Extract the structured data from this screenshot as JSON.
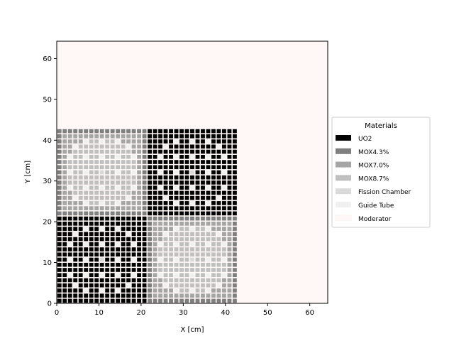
{
  "chart_data": {
    "type": "heatmap",
    "title": "",
    "xlabel": "X [cm]",
    "ylabel": "Y [cm]",
    "xlim": [
      0,
      64.26
    ],
    "ylim": [
      0,
      64.26
    ],
    "xticks": [
      0,
      10,
      20,
      30,
      40,
      50,
      60
    ],
    "yticks": [
      0,
      10,
      20,
      30,
      40,
      50,
      60
    ],
    "grid": false,
    "legend": {
      "title": "Materials",
      "placement": "outside-right",
      "entries": [
        {
          "name": "UO2",
          "color": "#000000"
        },
        {
          "name": "MOX4.3%",
          "color": "#7f7f7f"
        },
        {
          "name": "MOX7.0%",
          "color": "#a5a5a5"
        },
        {
          "name": "MOX8.7%",
          "color": "#bfbfbf"
        },
        {
          "name": "Fission Chamber",
          "color": "#d9d9d9"
        },
        {
          "name": "Guide Tube",
          "color": "#f0f0f0"
        },
        {
          "name": "Moderator",
          "color": "#fff8f6"
        }
      ]
    },
    "pin_pitch_cm": 1.26,
    "pins_per_assembly": 17,
    "assemblies": [
      {
        "position": "upper-left",
        "type": "MOX",
        "x_range": [
          0,
          21.42
        ],
        "y_range": [
          21.42,
          42.84
        ]
      },
      {
        "position": "upper-right",
        "type": "UO2",
        "x_range": [
          21.42,
          42.84
        ],
        "y_range": [
          21.42,
          42.84
        ]
      },
      {
        "position": "lower-left",
        "type": "UO2",
        "x_range": [
          0,
          21.42
        ],
        "y_range": [
          0,
          21.42
        ]
      },
      {
        "position": "lower-right",
        "type": "MOX",
        "x_range": [
          21.42,
          42.84
        ],
        "y_range": [
          0,
          21.42
        ]
      }
    ],
    "guide_tube_positions": [
      [
        2,
        5
      ],
      [
        2,
        8
      ],
      [
        2,
        11
      ],
      [
        3,
        3
      ],
      [
        3,
        13
      ],
      [
        5,
        2
      ],
      [
        5,
        5
      ],
      [
        5,
        8
      ],
      [
        5,
        11
      ],
      [
        5,
        14
      ],
      [
        8,
        2
      ],
      [
        8,
        5
      ],
      [
        8,
        11
      ],
      [
        8,
        14
      ],
      [
        11,
        2
      ],
      [
        11,
        5
      ],
      [
        11,
        8
      ],
      [
        11,
        11
      ],
      [
        11,
        14
      ],
      [
        13,
        3
      ],
      [
        13,
        13
      ],
      [
        14,
        5
      ],
      [
        14,
        8
      ],
      [
        14,
        11
      ]
    ],
    "fission_chamber_position": [
      8,
      8
    ]
  }
}
